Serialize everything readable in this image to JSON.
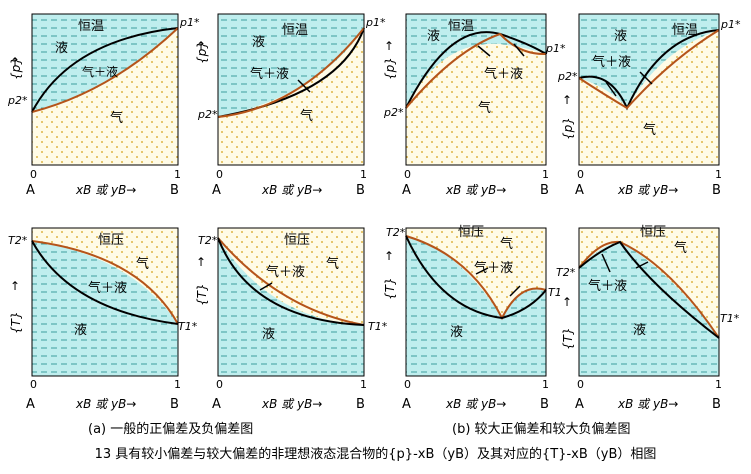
{
  "panels_pressure": [
    {
      "label_region_liquid": "液",
      "label_region_vapor": "气",
      "label_region_two": "气＋液",
      "label_condition": "恒温",
      "label_p1": "p1*",
      "label_p2": "p2*",
      "y_axis": "{p}",
      "x_tick_0": "0",
      "x_tick_1": "1",
      "x_left": "A",
      "x_right": "B",
      "x_axis": "xB 或 yB→"
    },
    {
      "label_region_liquid": "液",
      "label_region_vapor": "气",
      "label_region_two": "气＋液",
      "label_condition": "恒温",
      "label_p1": "p1*",
      "label_p2": "p2*",
      "y_axis": "{p}",
      "x_tick_0": "0",
      "x_tick_1": "1",
      "x_left": "A",
      "x_right": "B",
      "x_axis": "xB 或 yB→"
    },
    {
      "label_region_liquid": "液",
      "label_region_vapor": "气",
      "label_region_two": "气＋液",
      "label_condition": "恒温",
      "label_p1": "p1*",
      "label_p2": "p2*",
      "y_axis": "{p}",
      "x_tick_0": "0",
      "x_tick_1": "1",
      "x_left": "A",
      "x_right": "B",
      "x_axis": "xB 或 yB→"
    },
    {
      "label_region_liquid": "液",
      "label_region_vapor": "气",
      "label_region_two": "气＋液",
      "label_condition": "恒温",
      "label_p1": "p1*",
      "label_p2": "p2*",
      "y_axis": "{p}",
      "x_tick_0": "0",
      "x_tick_1": "1",
      "x_left": "A",
      "x_right": "B",
      "x_axis": "xB 或 yB→"
    }
  ],
  "panels_temperature": [
    {
      "label_region_liquid": "液",
      "label_region_vapor": "气",
      "label_region_two": "气＋液",
      "label_condition": "恒压",
      "label_T1": "T1*",
      "label_T2": "T2*",
      "y_axis": "{T}",
      "x_tick_0": "0",
      "x_tick_1": "1",
      "x_left": "A",
      "x_right": "B",
      "x_axis": "xB 或 yB→"
    },
    {
      "label_region_liquid": "液",
      "label_region_vapor": "气",
      "label_region_two": "气＋液",
      "label_condition": "恒压",
      "label_T1": "T1*",
      "label_T2": "T2*",
      "y_axis": "{T}",
      "x_tick_0": "0",
      "x_tick_1": "1",
      "x_left": "A",
      "x_right": "B",
      "x_axis": "xB 或 yB→"
    },
    {
      "label_region_liquid": "液",
      "label_region_vapor": "气",
      "label_region_two": "气＋液",
      "label_condition": "恒压",
      "label_T1": "T1",
      "label_T2": "T2*",
      "y_axis": "{T}",
      "x_tick_0": "0",
      "x_tick_1": "1",
      "x_left": "A",
      "x_right": "B",
      "x_axis": "xB 或 yB→"
    },
    {
      "label_region_liquid": "液",
      "label_region_vapor": "气",
      "label_region_two": "气＋液",
      "label_condition": "恒压",
      "label_T1": "T1*",
      "label_T2": "T2*",
      "y_axis": "{T}",
      "x_tick_0": "0",
      "x_tick_1": "1",
      "x_left": "A",
      "x_right": "B",
      "x_axis": "xB 或 yB→"
    }
  ],
  "captions": {
    "a": "(a) 一般的正偏差及负偏差图",
    "b": "(b) 较大正偏差和较大负偏差图",
    "figure": "13 具有较小偏差与较大偏差的非理想液态混合物的{p}-xB（yB）及其对应的{T}-xB（yB）相图"
  },
  "colors": {
    "liquid_fill": "#bfeeee",
    "liquid_dash": "#3e9e9e",
    "vapor_fill": "#fffbe6",
    "vapor_dot": "#d4a017",
    "liquid_curve": "#000000",
    "vapor_curve": "#b5541a"
  }
}
